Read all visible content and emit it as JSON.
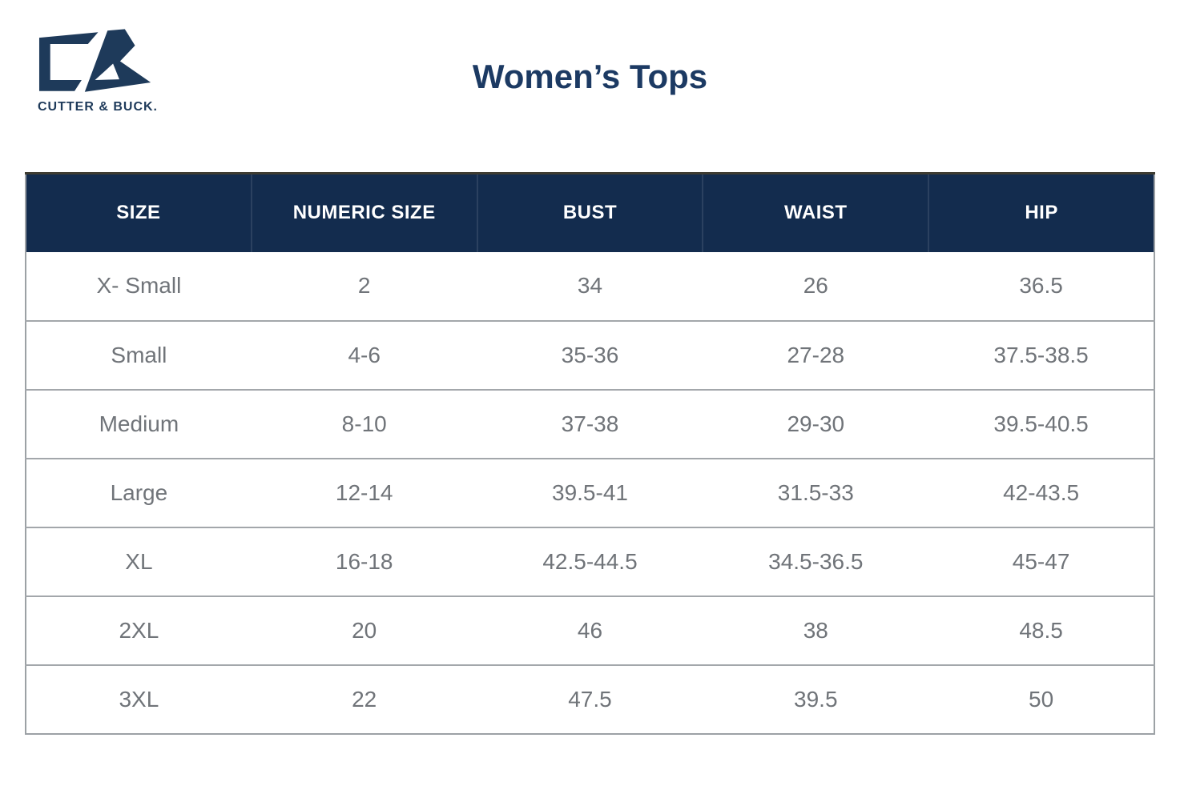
{
  "brand": {
    "wordmark": "CUTTER & BUCK.",
    "logo_icon": "cutter-buck-cb-monogram",
    "color": "#1e3a5a"
  },
  "title": "Women’s Tops",
  "table": {
    "headers": [
      "SIZE",
      "NUMERIC SIZE",
      "BUST",
      "WAIST",
      "HIP"
    ],
    "rows": [
      [
        "X- Small",
        "2",
        "34",
        "26",
        "36.5"
      ],
      [
        "Small",
        "4-6",
        "35-36",
        "27-28",
        "37.5-38.5"
      ],
      [
        "Medium",
        "8-10",
        "37-38",
        "29-30",
        "39.5-40.5"
      ],
      [
        "Large",
        "12-14",
        "39.5-41",
        "31.5-33",
        "42-43.5"
      ],
      [
        "XL",
        "16-18",
        "42.5-44.5",
        "34.5-36.5",
        "45-47"
      ],
      [
        "2XL",
        "20",
        "46",
        "38",
        "48.5"
      ],
      [
        "3XL",
        "22",
        "47.5",
        "39.5",
        "50"
      ]
    ]
  },
  "colors": {
    "header_background": "#132c4e",
    "header_text": "#ffffff",
    "row_text": "#707479",
    "row_separator": "#a3a7ab",
    "outer_border": "#9ca1a5",
    "title_text": "#1c3a63",
    "background": "#ffffff"
  }
}
